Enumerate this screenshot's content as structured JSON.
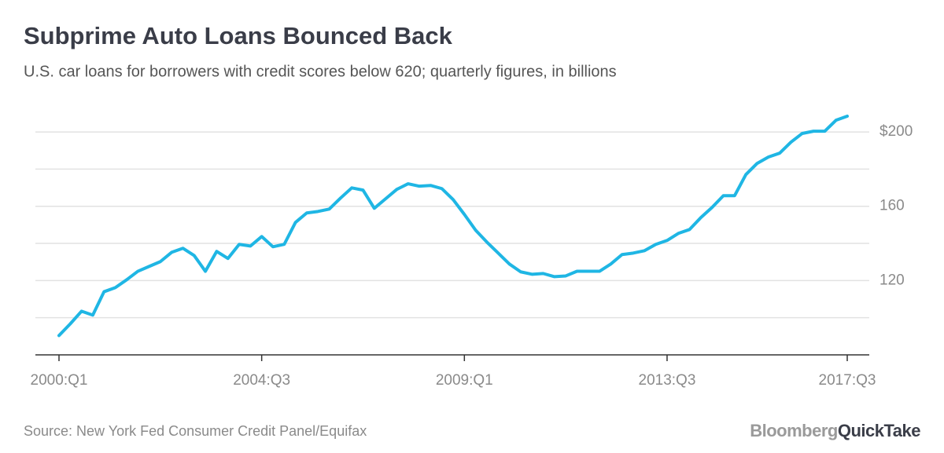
{
  "chart_data": {
    "type": "line",
    "title": "Subprime Auto Loans Bounced Back",
    "subtitle": "U.S. car loans for borrowers with credit scores below 620; quarterly figures, in billions",
    "source": "Source: New York Fed Consumer Credit Panel/Equifax",
    "logo": {
      "left": "Bloomberg",
      "right": "QuickTake"
    },
    "categories": [
      "2000:Q1",
      null,
      null,
      null,
      null,
      null,
      null,
      null,
      null,
      null,
      null,
      null,
      null,
      null,
      null,
      null,
      null,
      null,
      "2004:Q3",
      null,
      null,
      null,
      null,
      null,
      null,
      null,
      null,
      null,
      null,
      null,
      null,
      null,
      null,
      null,
      null,
      null,
      "2009:Q1",
      null,
      null,
      null,
      null,
      null,
      null,
      null,
      null,
      null,
      null,
      null,
      null,
      null,
      null,
      null,
      null,
      null,
      "2013:Q3",
      null,
      null,
      null,
      null,
      null,
      null,
      null,
      null,
      null,
      null,
      null,
      null,
      null,
      null,
      null,
      "2017:Q3"
    ],
    "series": [
      {
        "color": "#1fb6e4",
        "values": [
          90.4,
          96.7,
          103.5,
          101.4,
          114,
          116.2,
          120.4,
          125,
          127.6,
          130.2,
          135.2,
          137.4,
          133.5,
          125,
          135.7,
          131.9,
          139.5,
          138.6,
          143.7,
          138.2,
          139.5,
          151.3,
          156.4,
          157.2,
          158.5,
          164.4,
          169.9,
          168.7,
          158.9,
          164,
          169.1,
          172.1,
          170.8,
          171.2,
          169.5,
          163.6,
          155.6,
          147.1,
          140.7,
          134.8,
          128.9,
          124.7,
          123.4,
          123.8,
          122.1,
          122.5,
          125,
          125,
          125,
          128.9,
          134,
          134.8,
          136.1,
          139.5,
          141.6,
          145.4,
          147.5,
          153.9,
          159.4,
          165.7,
          165.7,
          177.1,
          183.1,
          186.5,
          188.6,
          194.5,
          199.2,
          200.4,
          200.4,
          206.3,
          208.5
        ]
      }
    ],
    "ylim": [
      80,
      215
    ],
    "yticks": [
      120,
      160,
      {
        "value": 200,
        "label": "$200"
      }
    ],
    "minor_yticks": [
      100,
      140,
      180
    ],
    "grid": true
  }
}
